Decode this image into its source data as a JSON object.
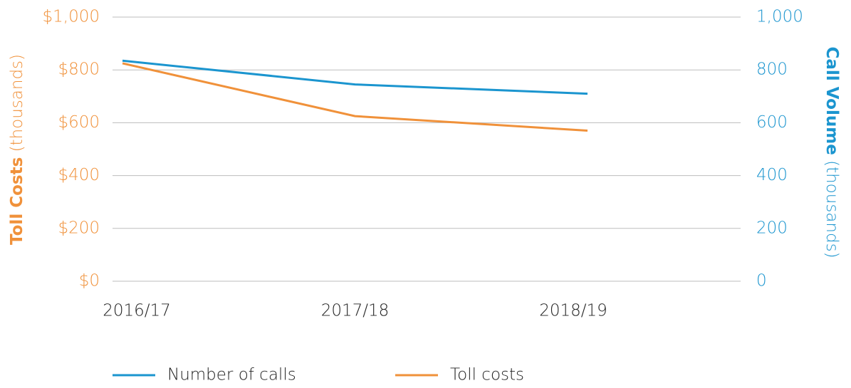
{
  "chart_data": {
    "type": "line",
    "categories": [
      "2016/17",
      "2017/18",
      "2018/19"
    ],
    "series": [
      {
        "name": "Number of calls",
        "color": "#1b95cf",
        "axis": "y2",
        "values": [
          835,
          745,
          710
        ]
      },
      {
        "name": "Toll costs",
        "color": "#f0913a",
        "values": [
          825,
          625,
          570
        ]
      }
    ],
    "ylabel": [
      "Toll Costs",
      "(thousands)"
    ],
    "y2label": [
      "Call Volume",
      "(thousands)"
    ],
    "ylim": [
      0,
      1000
    ],
    "yticks": [
      {
        "value": 0,
        "label": "$0"
      },
      {
        "value": 200,
        "label": "$200"
      },
      {
        "value": 400,
        "label": "$400"
      },
      {
        "value": 600,
        "label": "$600"
      },
      {
        "value": 800,
        "label": "$800"
      },
      {
        "value": 1000,
        "label": "$1,000"
      }
    ],
    "y2lim": [
      0,
      1000
    ],
    "y2ticks": [
      0,
      200,
      400,
      600,
      800,
      {
        "value": 1000,
        "label": "1,000"
      }
    ],
    "grid": true,
    "legend": "bottom"
  }
}
